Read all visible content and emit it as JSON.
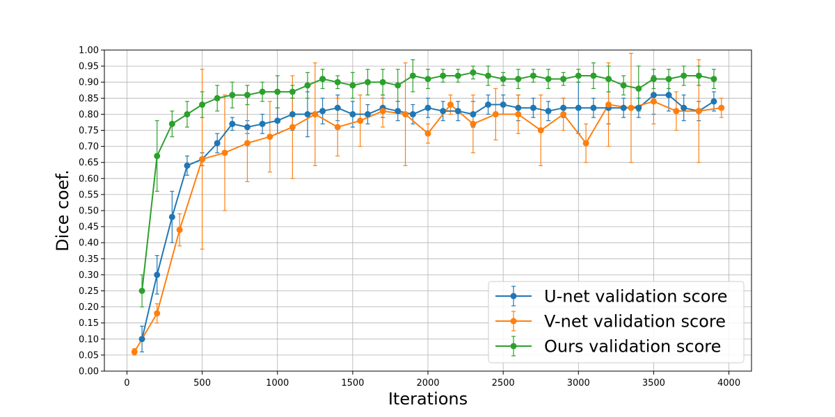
{
  "chart_data": {
    "type": "line",
    "title": "",
    "xlabel": "Iterations",
    "ylabel": "Dice coef.",
    "xlim": [
      -150,
      4150
    ],
    "ylim": [
      0,
      1
    ],
    "xticks": [
      0,
      500,
      1000,
      1500,
      2000,
      2500,
      3000,
      3500,
      4000
    ],
    "yticks": [
      0,
      0.05,
      0.1,
      0.15,
      0.2,
      0.25,
      0.3,
      0.35,
      0.4,
      0.45,
      0.5,
      0.55,
      0.6,
      0.65,
      0.7,
      0.75,
      0.8,
      0.85,
      0.9,
      0.95,
      1.0
    ],
    "grid": true,
    "legend_position": "lower-right",
    "series": [
      {
        "name": "U-net validation score",
        "color": "#1f77b4",
        "x": [
          100,
          200,
          300,
          400,
          500,
          600,
          700,
          800,
          900,
          1000,
          1100,
          1200,
          1300,
          1400,
          1500,
          1600,
          1700,
          1800,
          1900,
          2000,
          2100,
          2200,
          2300,
          2400,
          2500,
          2600,
          2700,
          2800,
          2900,
          3000,
          3100,
          3200,
          3300,
          3400,
          3500,
          3600,
          3700,
          3800,
          3900
        ],
        "y": [
          0.1,
          0.3,
          0.48,
          0.64,
          0.66,
          0.71,
          0.77,
          0.76,
          0.77,
          0.78,
          0.8,
          0.8,
          0.81,
          0.82,
          0.8,
          0.8,
          0.82,
          0.81,
          0.8,
          0.82,
          0.81,
          0.81,
          0.8,
          0.83,
          0.83,
          0.82,
          0.82,
          0.81,
          0.82,
          0.82,
          0.82,
          0.82,
          0.82,
          0.82,
          0.86,
          0.86,
          0.82,
          0.81,
          0.84
        ],
        "err": [
          0.04,
          0.06,
          0.08,
          0.03,
          0.02,
          0.03,
          0.02,
          0.02,
          0.03,
          0.04,
          0.05,
          0.07,
          0.04,
          0.04,
          0.04,
          0.03,
          0.03,
          0.03,
          0.03,
          0.03,
          0.03,
          0.03,
          0.04,
          0.03,
          0.03,
          0.04,
          0.03,
          0.03,
          0.03,
          0.08,
          0.03,
          0.05,
          0.03,
          0.03,
          0.06,
          0.05,
          0.04,
          0.03,
          0.03
        ]
      },
      {
        "name": "V-net validation score",
        "color": "#ff7f0e",
        "x": [
          50,
          200,
          350,
          500,
          650,
          800,
          950,
          1100,
          1250,
          1400,
          1550,
          1700,
          1850,
          2000,
          2150,
          2300,
          2450,
          2600,
          2750,
          2900,
          3050,
          3200,
          3350,
          3500,
          3650,
          3800,
          3950
        ],
        "y": [
          0.06,
          0.18,
          0.44,
          0.66,
          0.68,
          0.71,
          0.73,
          0.76,
          0.8,
          0.76,
          0.78,
          0.81,
          0.8,
          0.74,
          0.83,
          0.77,
          0.8,
          0.8,
          0.75,
          0.8,
          0.71,
          0.83,
          0.82,
          0.84,
          0.81,
          0.81,
          0.82
        ],
        "err": [
          0.01,
          0.03,
          0.05,
          0.28,
          0.18,
          0.12,
          0.11,
          0.16,
          0.16,
          0.09,
          0.08,
          0.05,
          0.16,
          0.03,
          0.03,
          0.09,
          0.08,
          0.06,
          0.11,
          0.05,
          0.06,
          0.13,
          0.17,
          0.07,
          0.06,
          0.16,
          0.03
        ]
      },
      {
        "name": "Ours validation score",
        "color": "#2ca02c",
        "x": [
          100,
          200,
          300,
          400,
          500,
          600,
          700,
          800,
          900,
          1000,
          1100,
          1200,
          1300,
          1400,
          1500,
          1600,
          1700,
          1800,
          1900,
          2000,
          2100,
          2200,
          2300,
          2400,
          2500,
          2600,
          2700,
          2800,
          2900,
          3000,
          3100,
          3200,
          3300,
          3400,
          3500,
          3600,
          3700,
          3800,
          3900
        ],
        "y": [
          0.25,
          0.67,
          0.77,
          0.8,
          0.83,
          0.85,
          0.86,
          0.86,
          0.87,
          0.87,
          0.87,
          0.89,
          0.91,
          0.9,
          0.89,
          0.9,
          0.9,
          0.89,
          0.92,
          0.91,
          0.92,
          0.92,
          0.93,
          0.92,
          0.91,
          0.91,
          0.92,
          0.91,
          0.91,
          0.92,
          0.92,
          0.91,
          0.89,
          0.88,
          0.91,
          0.91,
          0.92,
          0.92,
          0.91
        ],
        "err": [
          0.05,
          0.11,
          0.04,
          0.04,
          0.04,
          0.04,
          0.04,
          0.03,
          0.03,
          0.05,
          0.02,
          0.04,
          0.03,
          0.02,
          0.04,
          0.04,
          0.04,
          0.05,
          0.05,
          0.03,
          0.02,
          0.02,
          0.02,
          0.03,
          0.02,
          0.03,
          0.02,
          0.03,
          0.02,
          0.02,
          0.04,
          0.04,
          0.03,
          0.07,
          0.03,
          0.03,
          0.03,
          0.03,
          0.03
        ]
      }
    ]
  }
}
